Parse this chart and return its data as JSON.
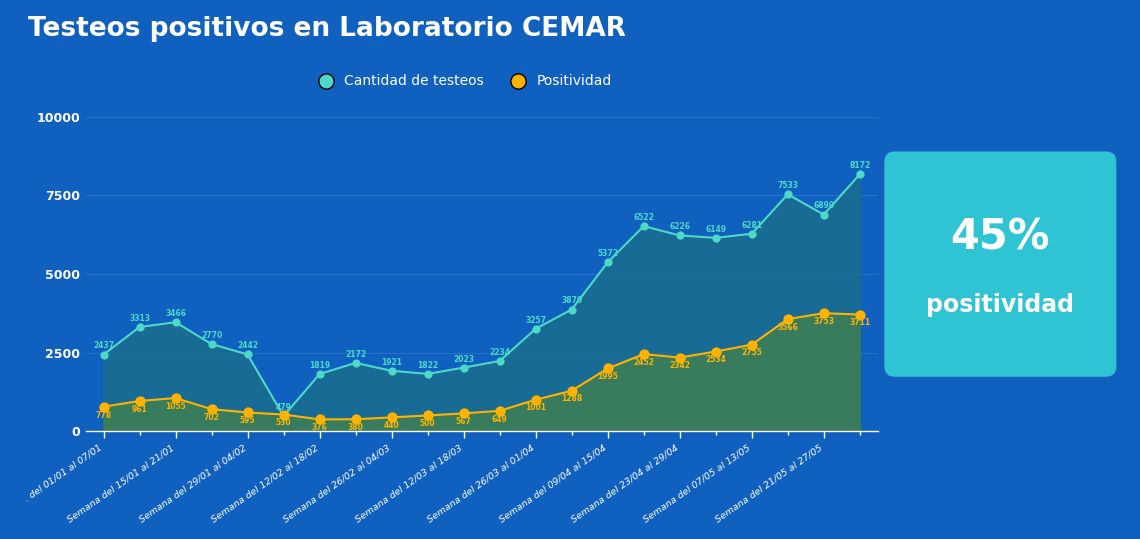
{
  "title": "Testeos positivos en Laboratorio CEMAR",
  "background_color": "#1060C0",
  "plot_bg_color": "#1060C0",
  "categories": [
    ". del 01/01 al 07/01",
    "Semana del 15/01 al 21/01",
    "Semana del 29/01 al 04/02",
    "Semana del 12/02 al 18/02",
    "Semana del 26/02 al 04/03",
    "Semana del 12/03 al 18/03",
    "Semana del 26/03 al 01/04",
    "Semana del 09/04 al 15/04",
    "Semana del 23/04 al 29/04",
    "Semana del 07/05 al 13/05",
    "Semana del 21/05 al 27/05"
  ],
  "testeos_values": [
    2437,
    3313,
    3466,
    2770,
    2442,
    479,
    1819,
    2172,
    1921,
    1822,
    2023,
    2234,
    3257,
    3870,
    5372,
    6522,
    6226,
    6149,
    6281,
    7533,
    6890,
    8172
  ],
  "testeos_labels": [
    "2437",
    "3313",
    "3466",
    "2770",
    "2442",
    "479",
    "1819",
    "2172",
    "1921",
    "1822",
    "2023",
    "2234",
    "3257",
    "3870",
    "5372",
    "6522",
    "6226",
    "6149",
    "6281",
    "7533",
    "6890",
    "8172"
  ],
  "positividad_values": [
    778,
    961,
    1055,
    702,
    595,
    530,
    376,
    380,
    440,
    500,
    567,
    649,
    1001,
    1288,
    1995,
    2452,
    2342,
    2534,
    2755,
    3566,
    3753,
    3711
  ],
  "positividad_labels": [
    "778",
    "961",
    "1055",
    "702",
    "595",
    "530",
    "376",
    "380",
    "440",
    "500",
    "567",
    "649",
    "1001",
    "1288",
    "1995",
    "2452",
    "2342",
    "2534",
    "2755",
    "3566",
    "3753",
    "3711"
  ],
  "n_points": 22,
  "testeos_color": "#4DD9C8",
  "testeos_label_color": "#4DD9C8",
  "positividad_color": "#FFB300",
  "positividad_label_color": "#FFB300",
  "fill_testeos_color": "#1A6E8E",
  "fill_positividad_color": "#3A7D5A",
  "legend_label_1": "Cantidad de testeos",
  "legend_label_2": "Positividad",
  "yticks": [
    0,
    2500,
    5000,
    7500,
    10000
  ],
  "ylim": [
    0,
    10800
  ],
  "box_color": "#2EC4D4",
  "box_text_1": "45%",
  "box_text_2": "positividad",
  "box_text_color": "#ffffff",
  "title_color": "#ffffff",
  "title_fontsize": 19,
  "grid_color": "#3A80CC",
  "tick_color": "#ffffff",
  "cat_positions": [
    0,
    2,
    4,
    6,
    8,
    10,
    12,
    14,
    16,
    18,
    20
  ]
}
